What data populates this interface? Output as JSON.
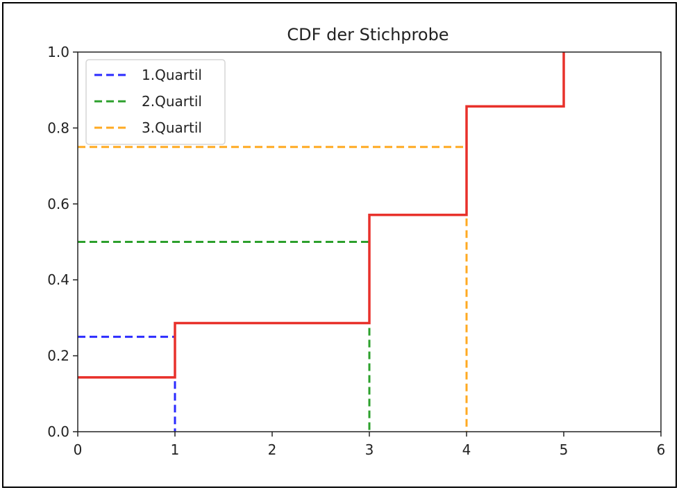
{
  "chart_data": {
    "type": "line",
    "title": "CDF der Stichprobe",
    "xlabel": "",
    "ylabel": "",
    "xlim": [
      0,
      6
    ],
    "ylim": [
      0,
      1
    ],
    "x_ticks": [
      "0",
      "1",
      "2",
      "3",
      "4",
      "5",
      "6"
    ],
    "y_ticks": [
      "0.0",
      "0.2",
      "0.4",
      "0.6",
      "0.8",
      "1.0"
    ],
    "grid": false,
    "legend_position": "top-left",
    "cdf": {
      "color": "#e8312b",
      "steps": [
        {
          "x": 0,
          "y": 0.143
        },
        {
          "x": 1,
          "y": 0.286
        },
        {
          "x": 3,
          "y": 0.571
        },
        {
          "x": 4,
          "y": 0.857
        },
        {
          "x": 5,
          "y": 1.0
        }
      ]
    },
    "series": [
      {
        "name": "1.Quartil",
        "color": "#2a2aff",
        "level": 0.25,
        "x": 1
      },
      {
        "name": "2.Quartil",
        "color": "#2ca02c",
        "level": 0.5,
        "x": 3
      },
      {
        "name": "3.Quartil",
        "color": "#ffaa22",
        "level": 0.75,
        "x": 4
      }
    ]
  }
}
